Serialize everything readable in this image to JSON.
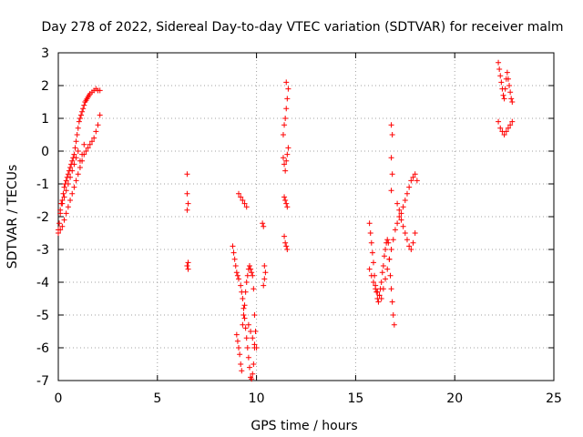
{
  "chart_data": {
    "type": "scatter",
    "title": "Day 278 of 2022, Sidereal Day-to-day VTEC variation (SDTVAR) for receiver malm",
    "xlabel": "GPS time / hours",
    "ylabel": "SDTVAR / TECUs",
    "xlim": [
      0,
      25
    ],
    "ylim": [
      -7,
      3
    ],
    "xticks": [
      0,
      5,
      10,
      15,
      20,
      25
    ],
    "yticks": [
      -7,
      -6,
      -5,
      -4,
      -3,
      -2,
      -1,
      0,
      1,
      2,
      3
    ],
    "xtick_labels": [
      "0",
      "5",
      "10",
      "15",
      "20",
      "25"
    ],
    "ytick_labels": [
      "-7",
      "-6",
      "-5",
      "-4",
      "-3",
      "-2",
      "-1",
      "0",
      "1",
      "2",
      "3"
    ],
    "grid": true,
    "legend": "none",
    "marker": "plus",
    "color": "#ff0000",
    "series": [
      {
        "x": [
          0.0,
          0.05,
          0.1,
          0.15,
          0.2,
          0.25,
          0.3,
          0.35,
          0.4,
          0.45,
          0.5,
          0.55,
          0.6,
          0.65,
          0.7,
          0.75,
          0.8,
          0.85,
          0.9,
          0.95,
          1.0,
          1.05,
          1.1,
          1.15,
          1.2,
          1.25,
          1.3,
          1.35,
          1.4,
          1.45,
          1.5,
          1.55,
          1.6,
          1.7,
          1.8,
          1.9,
          2.0,
          2.1,
          0.0,
          0.1,
          0.2,
          0.3,
          0.4,
          0.5,
          0.6,
          0.7,
          0.8,
          0.9,
          1.0,
          1.1,
          1.2,
          1.3,
          1.4,
          1.5,
          1.6,
          1.7,
          1.8,
          1.9,
          2.0,
          2.1,
          0.1,
          0.2,
          0.3,
          0.4,
          0.5,
          0.6,
          0.7,
          0.8,
          0.9,
          1.0,
          1.1,
          1.2,
          1.3,
          6.5,
          6.5,
          6.55,
          6.5,
          6.55,
          6.5,
          6.55,
          8.8,
          8.85,
          8.9,
          8.95,
          9.0,
          9.05,
          9.1,
          9.2,
          9.25,
          9.3,
          9.35,
          9.4,
          9.45,
          9.5,
          9.55,
          9.6,
          9.65,
          9.7,
          9.75,
          9.8,
          9.85,
          9.9,
          9.95,
          9.0,
          9.05,
          9.1,
          9.15,
          9.2,
          9.25,
          9.3,
          9.35,
          9.4,
          9.45,
          9.5,
          9.55,
          9.6,
          9.65,
          9.7,
          9.75,
          9.8,
          9.85,
          9.9,
          9.95,
          10.0,
          9.1,
          9.2,
          9.3,
          9.4,
          9.5,
          9.6,
          9.7,
          9.8,
          9.9,
          10.3,
          10.35,
          10.4,
          10.45,
          10.4,
          10.35,
          11.35,
          11.4,
          11.45,
          11.5,
          11.55,
          11.6,
          11.35,
          11.4,
          11.45,
          11.5,
          11.55,
          11.6,
          11.4,
          11.45,
          11.5,
          11.55,
          11.4,
          11.45,
          11.5,
          11.55,
          11.5,
          15.7,
          15.75,
          15.8,
          15.85,
          15.9,
          15.95,
          16.0,
          16.05,
          16.1,
          16.15,
          16.2,
          16.25,
          16.3,
          16.35,
          16.4,
          16.45,
          16.5,
          16.55,
          16.6,
          16.65,
          16.7,
          16.75,
          16.8,
          16.85,
          16.9,
          16.95,
          15.7,
          15.8,
          15.9,
          16.0,
          16.1,
          16.2,
          16.3,
          16.4,
          16.5,
          16.6,
          16.7,
          16.8,
          16.9,
          16.8,
          16.85,
          16.8,
          16.85,
          16.8,
          17.0,
          17.1,
          17.2,
          17.3,
          17.4,
          17.5,
          17.6,
          17.7,
          17.8,
          17.9,
          18.0,
          18.1,
          17.1,
          17.2,
          17.3,
          17.4,
          17.5,
          17.6,
          17.7,
          17.8,
          17.9,
          18.0,
          22.2,
          22.25,
          22.3,
          22.35,
          22.4,
          22.45,
          22.5,
          22.55,
          22.6,
          22.65,
          22.7,
          22.75,
          22.8,
          22.85,
          22.9,
          22.2,
          22.3,
          22.4,
          22.5,
          22.6,
          22.7,
          22.8,
          22.9
        ],
        "y": [
          -2.4,
          -2.2,
          -1.9,
          -1.6,
          -1.5,
          -1.3,
          -1.1,
          -1.0,
          -0.9,
          -0.8,
          -0.7,
          -0.6,
          -0.5,
          -0.4,
          -0.3,
          -0.2,
          -0.1,
          0.1,
          0.3,
          0.5,
          0.7,
          0.9,
          1.0,
          1.1,
          1.2,
          1.3,
          1.4,
          1.5,
          1.55,
          1.6,
          1.65,
          1.7,
          1.75,
          1.8,
          1.85,
          1.9,
          1.85,
          1.85,
          -2.5,
          -2.4,
          -2.3,
          -2.1,
          -1.9,
          -1.7,
          -1.5,
          -1.3,
          -1.1,
          -0.9,
          -0.7,
          -0.5,
          -0.3,
          -0.1,
          0.0,
          0.1,
          0.2,
          0.3,
          0.4,
          0.6,
          0.8,
          1.1,
          -1.8,
          -1.6,
          -1.4,
          -1.2,
          -1.0,
          -0.8,
          -0.6,
          -0.4,
          -0.2,
          0.0,
          -0.3,
          -0.1,
          0.2,
          -0.7,
          -1.3,
          -1.6,
          -1.8,
          -3.4,
          -3.5,
          -3.6,
          -2.9,
          -3.1,
          -3.3,
          -3.5,
          -3.7,
          -3.8,
          -3.9,
          -4.1,
          -4.3,
          -4.5,
          -4.8,
          -5.1,
          -5.4,
          -5.7,
          -6.0,
          -6.3,
          -6.6,
          -6.9,
          -6.95,
          -6.8,
          -6.5,
          -6.0,
          -5.5,
          -5.6,
          -5.8,
          -6.0,
          -6.2,
          -6.5,
          -6.7,
          -5.3,
          -5.0,
          -4.7,
          -4.3,
          -4.0,
          -3.8,
          -3.6,
          -3.5,
          -3.6,
          -3.7,
          -3.8,
          -4.2,
          -5.0,
          -5.5,
          -6.0,
          -1.3,
          -1.4,
          -1.5,
          -1.6,
          -1.7,
          -5.3,
          -5.5,
          -5.7,
          -5.9,
          -2.2,
          -2.3,
          -3.5,
          -3.7,
          -3.9,
          -4.1,
          -0.2,
          -0.4,
          -0.6,
          -0.3,
          -0.1,
          0.1,
          0.5,
          0.8,
          1.0,
          1.3,
          1.6,
          1.9,
          -1.4,
          -1.5,
          -1.6,
          -1.7,
          -2.6,
          -2.8,
          -2.9,
          -3.0,
          2.1,
          -2.2,
          -2.5,
          -2.8,
          -3.1,
          -3.4,
          -3.8,
          -4.1,
          -4.3,
          -4.5,
          -4.6,
          -4.4,
          -4.2,
          -4.0,
          -3.7,
          -3.5,
          -3.2,
          -3.0,
          -2.8,
          -2.7,
          -2.8,
          -3.3,
          -3.8,
          -4.2,
          -4.6,
          -5.0,
          -5.3,
          -3.6,
          -3.8,
          -4.0,
          -4.2,
          -4.3,
          -4.4,
          -4.5,
          -4.2,
          -3.9,
          -3.6,
          -3.3,
          -3.0,
          -2.7,
          0.8,
          0.5,
          -0.2,
          -0.7,
          -1.2,
          -2.4,
          -2.2,
          -2.0,
          -1.9,
          -1.7,
          -1.5,
          -1.3,
          -1.1,
          -0.9,
          -0.8,
          -0.7,
          -0.9,
          -1.6,
          -1.8,
          -2.1,
          -2.3,
          -2.5,
          -2.7,
          -2.9,
          -3.0,
          -2.8,
          -2.5,
          2.7,
          2.5,
          2.3,
          2.1,
          1.9,
          1.7,
          1.6,
          1.9,
          2.2,
          2.4,
          2.2,
          2.0,
          1.8,
          1.6,
          1.5,
          0.9,
          0.7,
          0.6,
          0.5,
          0.6,
          0.7,
          0.8,
          0.9
        ]
      }
    ]
  }
}
